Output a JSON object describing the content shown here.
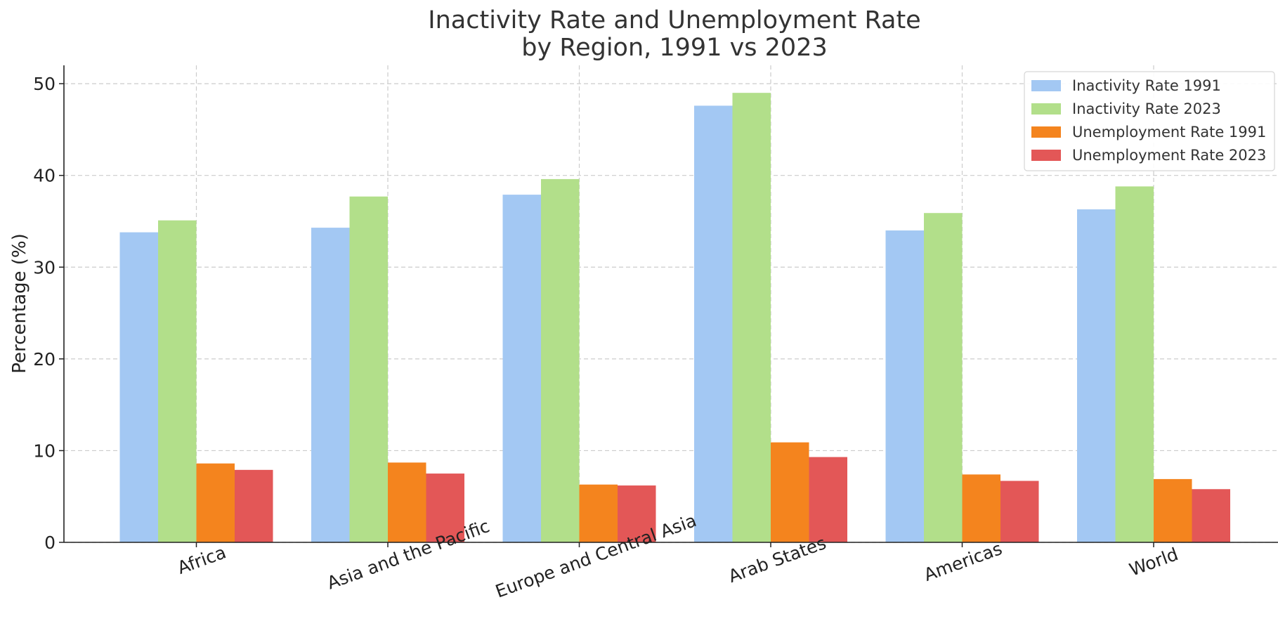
{
  "chart_data": {
    "type": "bar",
    "title_lines": [
      "Inactivity Rate and Unemployment Rate",
      "by Region, 1991 vs 2023"
    ],
    "xlabel": "",
    "ylabel": "Percentage (%)",
    "ylim": [
      0,
      52
    ],
    "yticks": [
      0,
      10,
      20,
      30,
      40,
      50
    ],
    "grid": true,
    "legend_position": "top-right",
    "categories": [
      "Africa",
      "Asia and the Pacific",
      "Europe and Central Asia",
      "Arab States",
      "Americas",
      "World"
    ],
    "series": [
      {
        "name": "Inactivity Rate 1991",
        "color": "#a3c8f3",
        "values": [
          33.8,
          34.3,
          37.9,
          47.6,
          34.0,
          36.3
        ]
      },
      {
        "name": "Inactivity Rate 2023",
        "color": "#b2df8a",
        "values": [
          35.1,
          37.7,
          39.6,
          49.0,
          35.9,
          38.8
        ]
      },
      {
        "name": "Unemployment Rate 1991",
        "color": "#f4841e",
        "values": [
          8.6,
          8.7,
          6.3,
          10.9,
          7.4,
          6.9
        ]
      },
      {
        "name": "Unemployment Rate 2023",
        "color": "#e35757",
        "values": [
          7.9,
          7.5,
          6.2,
          9.3,
          6.7,
          5.8
        ]
      }
    ]
  }
}
